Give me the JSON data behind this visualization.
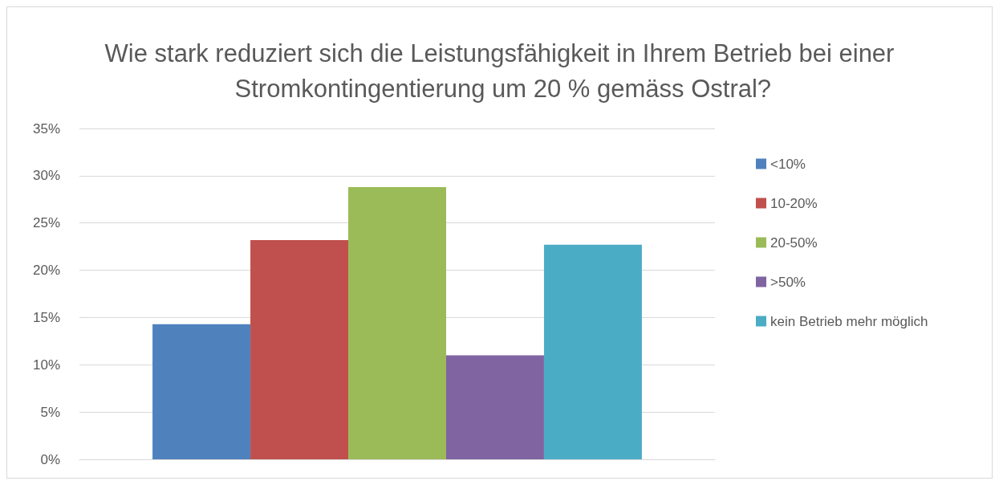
{
  "chart_data": {
    "type": "bar",
    "title": "Wie stark reduziert sich die Leistungsfähigkeit in Ihrem Betrieb bei einer Stromkontingentierung um 20 % gemäss Ostral?",
    "categories": [
      null
    ],
    "series": [
      {
        "name": "<10%",
        "color": "#4f81bd",
        "values": [
          14.3
        ]
      },
      {
        "name": "10-20%",
        "color": "#c0504d",
        "values": [
          23.2
        ]
      },
      {
        "name": "20-50%",
        "color": "#9bbb59",
        "values": [
          28.8
        ]
      },
      {
        "name": ">50%",
        "color": "#8064a2",
        "values": [
          11.0
        ]
      },
      {
        "name": "kein Betrieb mehr möglich",
        "color": "#4bacc6",
        "values": [
          22.7
        ]
      }
    ],
    "ylim": [
      0,
      35
    ],
    "yticks": [
      {
        "value": 0,
        "label": "0%"
      },
      {
        "value": 5,
        "label": "5%"
      },
      {
        "value": 10,
        "label": "10%"
      },
      {
        "value": 15,
        "label": "15%"
      },
      {
        "value": 20,
        "label": "20%"
      },
      {
        "value": 25,
        "label": "25%"
      },
      {
        "value": 30,
        "label": "30%"
      },
      {
        "value": 35,
        "label": "35%"
      }
    ],
    "grid": "y",
    "legend": "right"
  }
}
